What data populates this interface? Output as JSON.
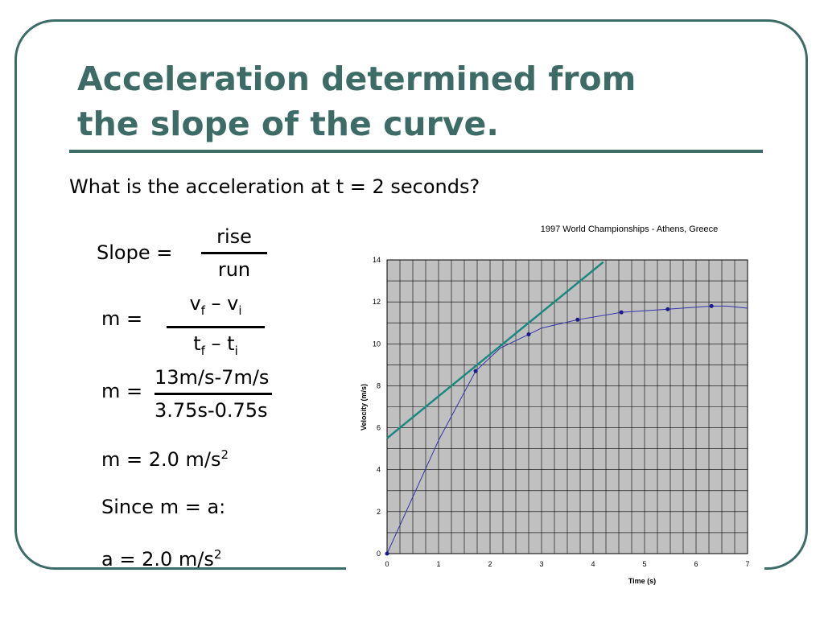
{
  "slide": {
    "title_line1": "Acceleration determined from",
    "title_line2": "the slope of the curve.",
    "question": "What is the acceleration at t = 2 seconds?",
    "slope_label": "Slope =",
    "slope_num": "rise",
    "slope_den": "run",
    "m_label": "m =",
    "m_num_v1": "v",
    "m_num_f": "f",
    "m_num_dash": " – v",
    "m_num_i": "i",
    "m_den_t1": "t",
    "m_den_f": "f",
    "m_den_dash": " – t",
    "m_den_i": "i",
    "m2_label": "m =",
    "m2_num": "13m/s-7m/s",
    "m2_den": "3.75s-0.75s",
    "result_text": "m = 2.0 m/s",
    "result_sup": "2",
    "since_text": "Since m = a:",
    "accel_text": "a = 2.0 m/s",
    "accel_sup": "2"
  },
  "colors": {
    "accent": "#3d6b66",
    "tangent": "#1a8a80",
    "curve": "#3333aa",
    "plot_bg": "#c0c0c0"
  },
  "chart_data": {
    "type": "line",
    "title": "1997 World Championships - Athens, Greece",
    "xlabel": "Time (s)",
    "ylabel": "Velocity (m/s)",
    "xlim": [
      0,
      7
    ],
    "ylim": [
      0,
      14
    ],
    "x_ticks": [
      0,
      1,
      2,
      3,
      4,
      5,
      6,
      7
    ],
    "y_ticks": [
      0,
      2,
      4,
      6,
      8,
      10,
      12,
      14
    ],
    "grid": true,
    "series": [
      {
        "values_xy": [
          [
            0,
            0
          ],
          [
            1.72,
            8.7
          ],
          [
            2.75,
            10.45
          ],
          [
            3.7,
            11.15
          ],
          [
            4.55,
            11.5
          ],
          [
            5.45,
            11.65
          ],
          [
            6.3,
            11.8
          ]
        ],
        "curve_xy": [
          [
            0,
            0
          ],
          [
            1.0,
            5.4
          ],
          [
            1.72,
            8.7
          ],
          [
            2.2,
            9.8
          ],
          [
            2.75,
            10.45
          ],
          [
            3.0,
            10.75
          ],
          [
            3.7,
            11.15
          ],
          [
            4.55,
            11.5
          ],
          [
            5.45,
            11.65
          ],
          [
            6.3,
            11.8
          ],
          [
            6.6,
            11.8
          ],
          [
            7,
            11.7
          ]
        ]
      },
      {
        "kind": "tangent",
        "values_xy": [
          [
            0,
            5.5
          ],
          [
            4.2,
            13.9
          ]
        ]
      }
    ]
  }
}
